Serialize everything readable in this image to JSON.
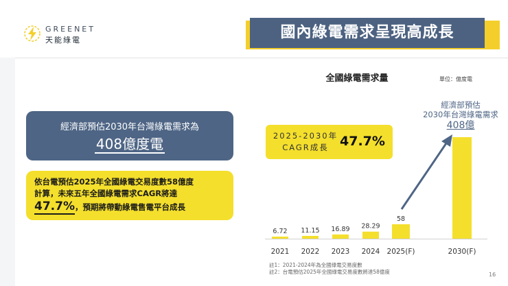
{
  "brand": {
    "name_en": "GREENET",
    "name_zh": "天能綠電",
    "accent": "#f4cf2b",
    "navy": "#4e6585"
  },
  "slide": {
    "title": "國內綠電需求呈現高成長",
    "page_number": "16"
  },
  "left_panel": {
    "forecast_line1": "經濟部預估2030年台灣綠電需求為",
    "forecast_value": "408億度電",
    "note_line1": "依台電預估2025年全國綠電交易度數58億度",
    "note_line2": "計算，未來五年全國綠電需求CAGR將達",
    "note_value": "47.7%",
    "note_line3_rest": "，預期將帶動綠電售電平台成長"
  },
  "cagr_box": {
    "label_line1": "2025-2030年",
    "label_line2": "CAGR成長",
    "value": "47.7%"
  },
  "annotation": {
    "line1": "經濟部預估",
    "line2": "2030年台灣綠電需求",
    "value": "408億"
  },
  "notes": [
    "註1：2021-2024年為全國綠電交易度數",
    "註2：台電預估2025年全國綠電交易度數將達58億度"
  ],
  "chart_data": {
    "type": "bar",
    "title": "全國綠電需求量",
    "unit_label": "單位：億度電",
    "categories": [
      "2021",
      "2022",
      "2023",
      "2024",
      "2025(F)",
      "2030(F)"
    ],
    "values": [
      6.72,
      11.15,
      16.89,
      28.29,
      58,
      408
    ],
    "value_labels": [
      "6.72",
      "11.15",
      "16.89",
      "28.29",
      "58",
      ""
    ],
    "bar_color": "#f4df2c",
    "ylim": [
      0,
      408
    ],
    "grid": false,
    "legend": "none"
  }
}
